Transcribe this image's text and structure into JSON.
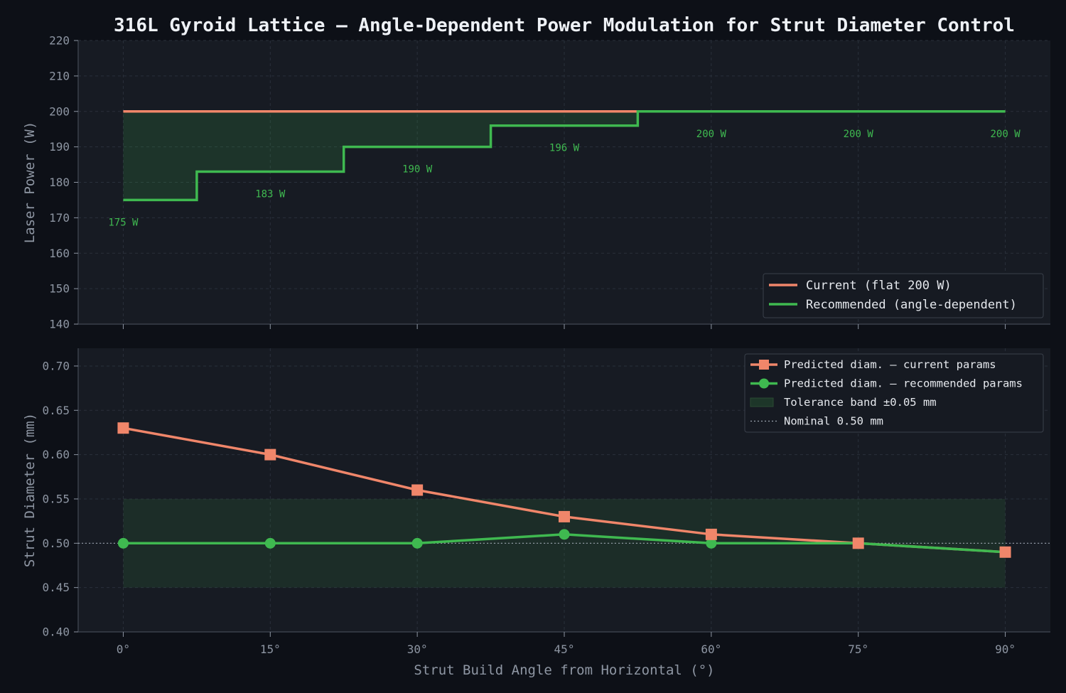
{
  "chart_data": {
    "title": "316L Gyroid Lattice — Angle-Dependent Power Modulation for Strut Diameter Control",
    "colors": {
      "current": "#f0866a",
      "recommended": "#3fb950",
      "background": "#0d1017",
      "panel": "#171b23"
    },
    "xlabel": "Strut Build Angle from Horizontal (°)",
    "x_ticks": [
      0,
      15,
      30,
      45,
      60,
      75,
      90
    ],
    "x_tick_labels": [
      "0°",
      "15°",
      "30°",
      "45°",
      "60°",
      "75°",
      "90°"
    ],
    "xlim": [
      -4.6,
      94.6
    ],
    "panels": [
      {
        "type": "line",
        "ylabel": "Laser Power (W)",
        "ylim": [
          140,
          220
        ],
        "y_ticks": [
          140,
          150,
          160,
          170,
          180,
          190,
          200,
          210,
          220
        ],
        "y_tick_labels": [
          "140",
          "150",
          "160",
          "170",
          "180",
          "190",
          "200",
          "210",
          "220"
        ],
        "grid": true,
        "legend_position": "lower-right",
        "series": [
          {
            "name": "Current (flat 200 W)",
            "key": "current",
            "x": [
              0,
              90
            ],
            "y": [
              200,
              200
            ]
          },
          {
            "name": "Recommended (angle-dependent)",
            "key": "recommended",
            "step": "mid",
            "x": [
              0,
              15,
              30,
              45,
              60,
              75,
              90
            ],
            "y": [
              175,
              183,
              190,
              196,
              200,
              200,
              200
            ],
            "labels": [
              "175 W",
              "183 W",
              "190 W",
              "196 W",
              "200 W",
              "200 W",
              "200 W"
            ]
          }
        ],
        "fill_between": {
          "between": [
            "current",
            "recommended"
          ]
        }
      },
      {
        "type": "line",
        "ylabel": "Strut Diameter (mm)",
        "ylim": [
          0.4,
          0.72
        ],
        "y_ticks": [
          0.4,
          0.45,
          0.5,
          0.55,
          0.6,
          0.65,
          0.7
        ],
        "y_tick_labels": [
          "0.40",
          "0.45",
          "0.50",
          "0.55",
          "0.60",
          "0.65",
          "0.70"
        ],
        "grid": true,
        "legend_position": "upper-right",
        "series": [
          {
            "name": "Predicted diam. — current params",
            "key": "current",
            "marker": "square",
            "x": [
              0,
              15,
              30,
              45,
              60,
              75,
              90
            ],
            "y": [
              0.63,
              0.6,
              0.56,
              0.53,
              0.51,
              0.5,
              0.49
            ]
          },
          {
            "name": "Predicted diam. — recommended params",
            "key": "recommended",
            "marker": "circle",
            "x": [
              0,
              15,
              30,
              45,
              60,
              75,
              90
            ],
            "y": [
              0.5,
              0.5,
              0.5,
              0.51,
              0.5,
              0.5,
              0.49
            ]
          }
        ],
        "band": {
          "name": "Tolerance band ±0.05 mm",
          "x": [
            0,
            90
          ],
          "y": [
            0.45,
            0.55
          ]
        },
        "reference_line": {
          "name": "Nominal 0.50 mm",
          "y": 0.5
        }
      }
    ]
  }
}
